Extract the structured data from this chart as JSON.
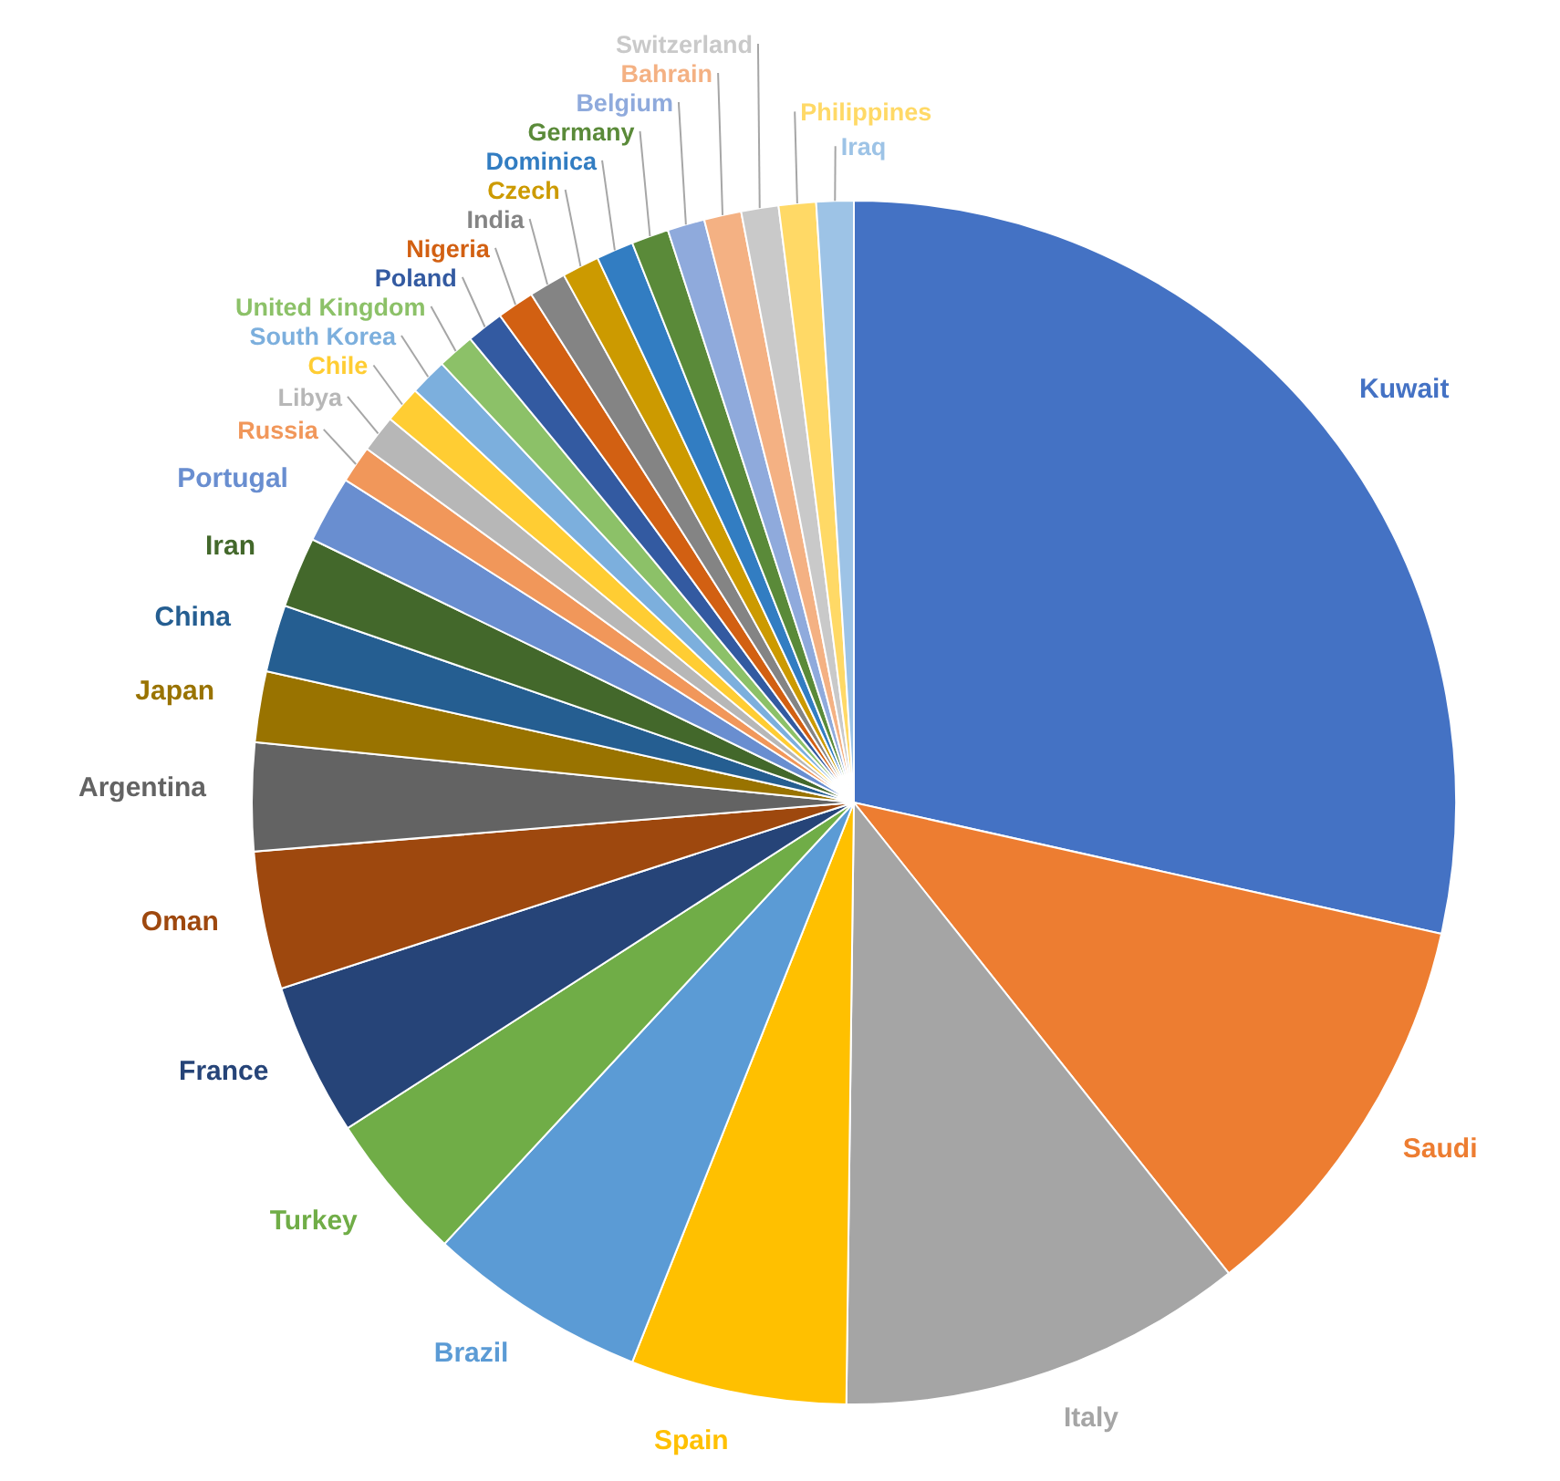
{
  "chart_data": {
    "type": "pie",
    "categories": [
      "Kuwait",
      "Saudi",
      "Italy",
      "Spain",
      "Brazil",
      "Turkey",
      "France",
      "Oman",
      "Argentina",
      "Japan",
      "China",
      "Iran",
      "Portugal",
      "Russia",
      "Libya",
      "Chile",
      "South Korea",
      "United Kingdom",
      "Poland",
      "Nigeria",
      "India",
      "Czech",
      "Dominica",
      "Germany",
      "Belgium",
      "Bahrain",
      "Switzerland",
      "Philippines",
      "Iraq"
    ],
    "values": [
      28.5,
      10.8,
      10.9,
      5.8,
      5.9,
      4.0,
      4.1,
      3.7,
      2.9,
      1.9,
      1.8,
      1.9,
      1.8,
      1.0,
      1.0,
      1.0,
      1.0,
      1.0,
      1.0,
      1.0,
      1.0,
      1.0,
      1.0,
      1.0,
      1.0,
      1.0,
      1.0,
      1.0,
      1.0
    ],
    "colors": [
      "#4472c4",
      "#ed7d31",
      "#a5a5a5",
      "#ffc000",
      "#5b9bd5",
      "#70ad47",
      "#264478",
      "#9e480e",
      "#636363",
      "#997300",
      "#255e91",
      "#43682b",
      "#698ed0",
      "#f1975a",
      "#b7b7b7",
      "#ffcd33",
      "#7cafdd",
      "#8cc168",
      "#335aa1",
      "#d26012",
      "#848484",
      "#cc9a00",
      "#327dc2",
      "#5a8a39",
      "#8faadc",
      "#f4b183",
      "#c9c9c9",
      "#ffd966",
      "#9dc3e6"
    ]
  }
}
